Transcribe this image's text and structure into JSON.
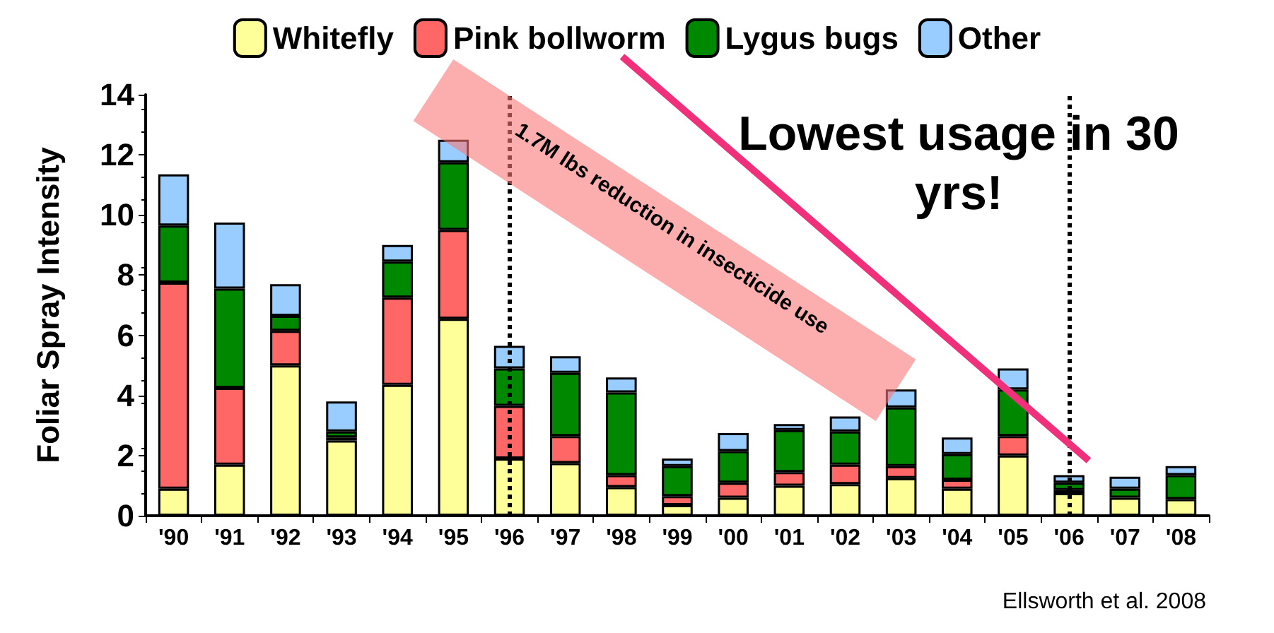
{
  "chart_data": {
    "type": "bar",
    "stacked": true,
    "ylabel": "Foliar Spray Intensity",
    "categories": [
      "'90",
      "'91",
      "'92",
      "'93",
      "'94",
      "'95",
      "'96",
      "'97",
      "'98",
      "'99",
      "'00",
      "'01",
      "'02",
      "'03",
      "'04",
      "'05",
      "'06",
      "'07",
      "'08"
    ],
    "series": [
      {
        "name": "Whitefly",
        "color": "#ffff99",
        "values": [
          0.9,
          1.7,
          5.0,
          2.5,
          4.35,
          6.55,
          1.9,
          1.75,
          0.95,
          0.35,
          0.6,
          1.0,
          1.05,
          1.25,
          0.9,
          2.0,
          0.75,
          0.6,
          0.55
        ]
      },
      {
        "name": "Pink bollworm",
        "color": "#ff6666",
        "values": [
          6.85,
          2.55,
          1.15,
          0.1,
          2.9,
          2.95,
          1.75,
          0.9,
          0.4,
          0.3,
          0.5,
          0.45,
          0.65,
          0.4,
          0.3,
          0.65,
          0.1,
          0,
          0
        ]
      },
      {
        "name": "Lygus bugs",
        "color": "#008800",
        "values": [
          1.9,
          3.3,
          0.5,
          0.2,
          1.2,
          2.25,
          1.25,
          2.1,
          2.75,
          1.0,
          1.05,
          1.4,
          1.1,
          1.95,
          0.85,
          1.55,
          0.25,
          0.3,
          0.8
        ]
      },
      {
        "name": "Other",
        "color": "#99ccff",
        "values": [
          1.7,
          2.2,
          1.05,
          1.0,
          0.55,
          0.75,
          0.75,
          0.55,
          0.5,
          0.25,
          0.6,
          0.2,
          0.5,
          0.6,
          0.55,
          0.7,
          0.25,
          0.4,
          0.3
        ]
      }
    ],
    "ylim": [
      0,
      14
    ],
    "yticks": [
      0,
      2,
      4,
      6,
      8,
      10,
      12,
      14
    ],
    "grid": false,
    "legend": "top",
    "ref_lines": [
      {
        "axis": "x",
        "value": "'96",
        "line_style": "dotted",
        "color": "#000000"
      },
      {
        "axis": "x",
        "value": "'06",
        "line_style": "dotted",
        "color": "#000000"
      }
    ],
    "annotations": [
      "1.7M lbs reduction in insecticide use",
      "Lowest usage in 30 yrs!",
      "Ellsworth et al. 2008"
    ]
  }
}
